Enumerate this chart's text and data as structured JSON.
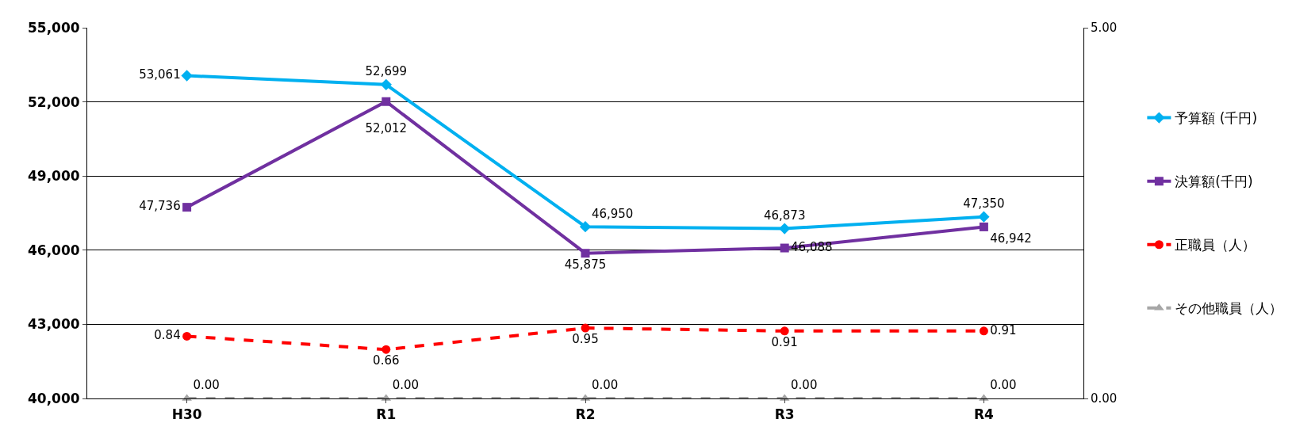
{
  "chart_data": {
    "type": "line",
    "categories": [
      "H30",
      "R1",
      "R2",
      "R3",
      "R4"
    ],
    "series": [
      {
        "name": "予算額 (千円)",
        "color": "#00b0f0",
        "values": [
          53061,
          52699,
          46950,
          46873,
          47350
        ],
        "value_labels": [
          "53,061",
          "52,699",
          "46,950",
          "46,873",
          "47,350"
        ],
        "marker": "diamond",
        "line_style": "solid"
      },
      {
        "name": "決算額(千円)",
        "color": "#7030a0",
        "values": [
          47736,
          52012,
          45875,
          46088,
          46942
        ],
        "value_labels": [
          "47,736",
          "52,012",
          "45,875",
          "46,088",
          "46,942"
        ],
        "marker": "square",
        "line_style": "solid"
      },
      {
        "name": "正職員（人）",
        "color": "#ff0000",
        "values": [
          0.84,
          0.66,
          0.95,
          0.91,
          0.91
        ],
        "value_labels": [
          "0.84",
          "0.66",
          "0.95",
          "0.91",
          "0.91"
        ],
        "marker": "circle",
        "line_style": "dashed",
        "axis": "y2"
      },
      {
        "name": "その他職員（人）",
        "color": "#a6a6a6",
        "values": [
          0,
          0,
          0,
          0,
          0
        ],
        "value_labels": [
          "0.00",
          "0.00",
          "0.00",
          "0.00",
          "0.00"
        ],
        "marker": "triangle",
        "line_style": "dashed",
        "axis": "y2"
      }
    ],
    "ylim": [
      40000,
      55000
    ],
    "yticks": [
      {
        "value": 40000,
        "label": "40,000"
      },
      {
        "value": 43000,
        "label": "43,000"
      },
      {
        "value": 46000,
        "label": "46,000"
      },
      {
        "value": 49000,
        "label": "49,000"
      },
      {
        "value": 52000,
        "label": "52,000"
      },
      {
        "value": 55000,
        "label": "55,000"
      }
    ],
    "y2lim": [
      0,
      5
    ],
    "y2ticks": [
      {
        "value": 0,
        "label": "0.00"
      },
      {
        "value": 5,
        "label": "5.00"
      }
    ],
    "grid": "y",
    "legend": "right"
  }
}
